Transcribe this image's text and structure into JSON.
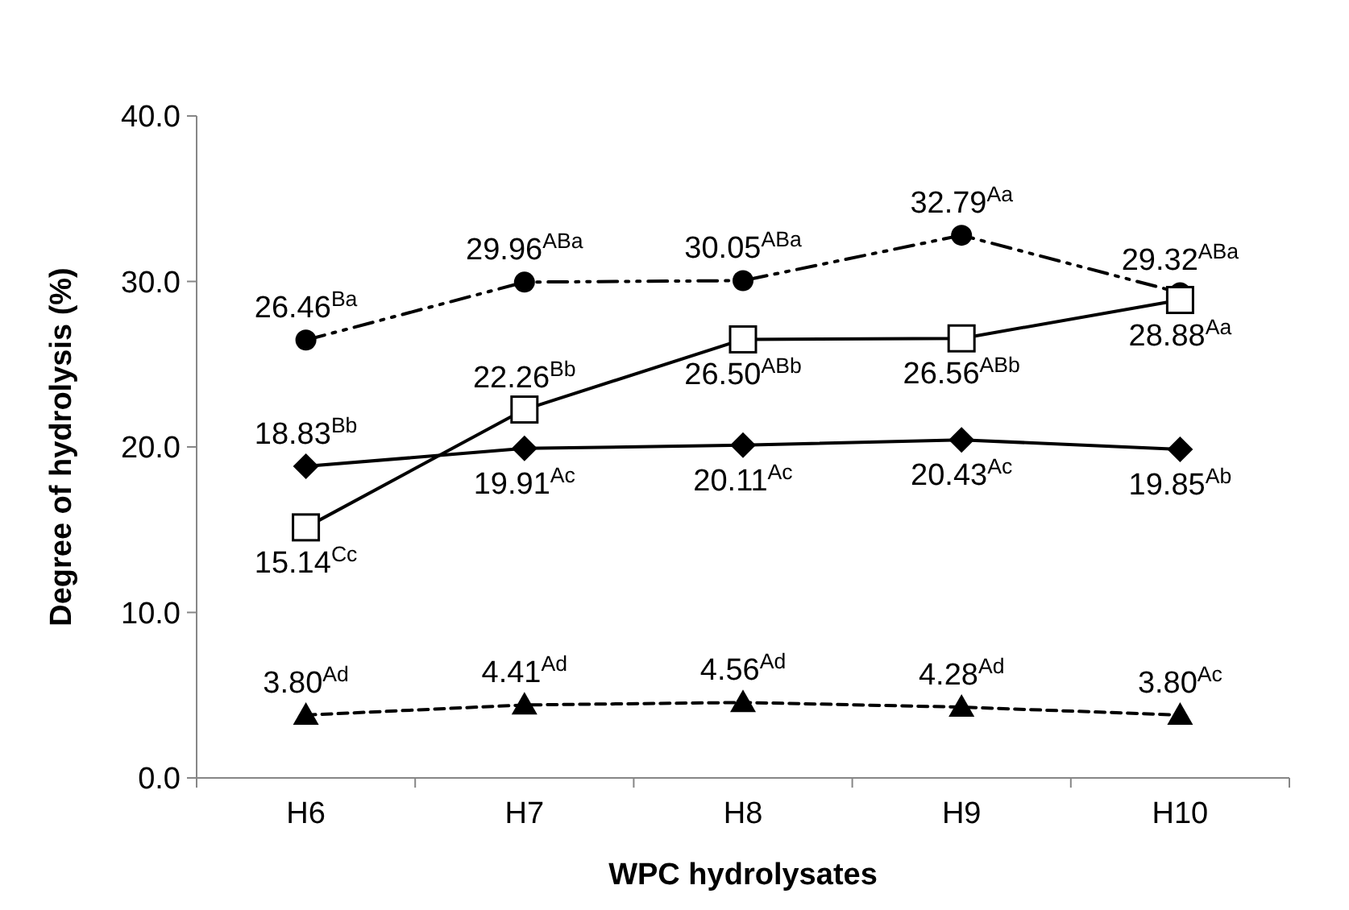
{
  "chart_data": {
    "type": "line",
    "xlabel": "WPC hydrolysates",
    "ylabel": "Degree of hydrolysis (%)",
    "categories": [
      "H6",
      "H7",
      "H8",
      "H9",
      "H10"
    ],
    "ylim": [
      0,
      40
    ],
    "yticks": [
      {
        "value": 0,
        "label": "0.0"
      },
      {
        "value": 10,
        "label": "10.0"
      },
      {
        "value": 20,
        "label": "20.0"
      },
      {
        "value": 30,
        "label": "30.0"
      },
      {
        "value": 40,
        "label": "40.0"
      }
    ],
    "series": [
      {
        "color": "#000000",
        "marker": "circle",
        "line_style": "dashdotdot",
        "values": [
          26.46,
          29.96,
          30.05,
          32.79,
          29.32
        ],
        "value_labels": [
          "26.46$^{Ba}$",
          "29.96$^{ABa}$",
          "30.05$^{ABa}$",
          "32.79$^{Aa}$",
          "29.32$^{ABa}$"
        ]
      },
      {
        "color": "#000000",
        "marker": "square",
        "line_style": "solid",
        "values": [
          15.14,
          22.26,
          26.5,
          26.56,
          28.88
        ],
        "value_labels": [
          "15.14$^{Cc}$",
          "22.26$^{Bb}$",
          "26.50$^{ABb}$",
          "26.56$^{ABb}$",
          "28.88$^{Aa}$"
        ]
      },
      {
        "color": "#000000",
        "marker": "diamond",
        "line_style": "solid",
        "values": [
          18.83,
          19.91,
          20.11,
          20.43,
          19.85
        ],
        "value_labels": [
          "18.83$^{Bb}$",
          "19.91$^{Ac}$",
          "20.11$^{Ac}$",
          "20.43$^{Ac}$",
          "19.85$^{Ab}$"
        ]
      },
      {
        "color": "#000000",
        "marker": "triangle",
        "line_style": "dashed",
        "values": [
          3.8,
          4.41,
          4.56,
          4.28,
          3.8
        ],
        "value_labels": [
          "3.80$^{Ad}$",
          "4.41$^{Ad}$",
          "4.56$^{Ad}$",
          "4.28$^{Ad}$",
          "3.80$^{Ac}$"
        ]
      }
    ]
  }
}
